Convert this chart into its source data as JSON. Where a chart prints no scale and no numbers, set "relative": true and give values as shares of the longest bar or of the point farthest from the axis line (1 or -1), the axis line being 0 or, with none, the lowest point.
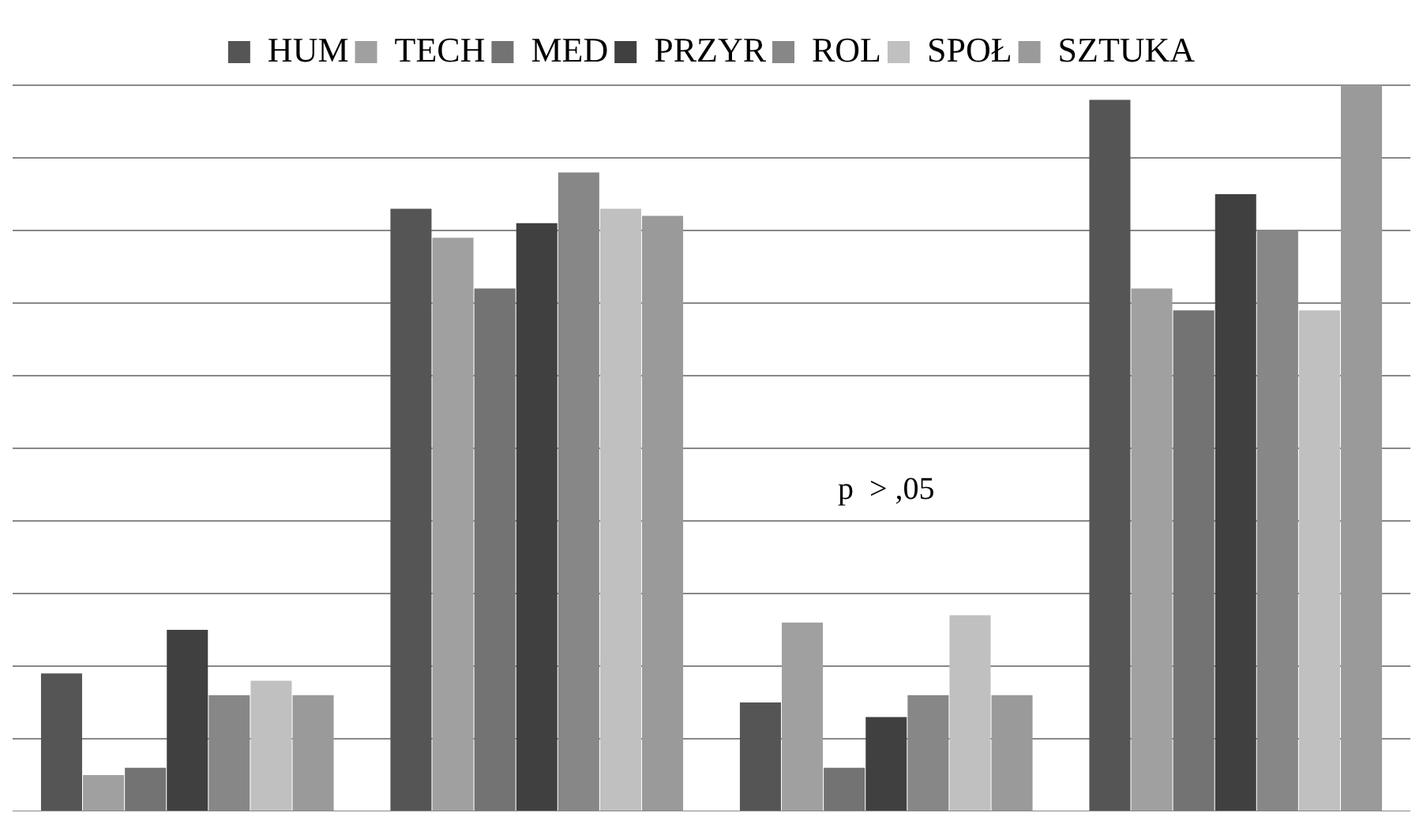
{
  "chart_data": {
    "type": "bar",
    "relative": true,
    "categories": [
      null,
      null,
      null,
      null
    ],
    "grid": "y",
    "legend": "top",
    "annotations": [
      "p  > ,05"
    ],
    "series": [
      {
        "name": "HUM",
        "color": "#555555",
        "values": [
          0.19,
          0.83,
          0.15,
          0.98
        ]
      },
      {
        "name": "TECH",
        "color": "#a0a0a0",
        "values": [
          0.05,
          0.79,
          0.26,
          0.72
        ]
      },
      {
        "name": "MED",
        "color": "#737373",
        "values": [
          0.06,
          0.72,
          0.06,
          0.69
        ]
      },
      {
        "name": "PRZYR",
        "color": "#404040",
        "values": [
          0.25,
          0.81,
          0.13,
          0.85
        ]
      },
      {
        "name": "ROL",
        "color": "#878787",
        "values": [
          0.16,
          0.88,
          0.16,
          0.8
        ]
      },
      {
        "name": "SPOŁ",
        "color": "#c0c0c0",
        "values": [
          0.18,
          0.83,
          0.27,
          0.69
        ]
      },
      {
        "name": "SZTUKA",
        "color": "#9a9a9a",
        "values": [
          0.16,
          0.82,
          0.16,
          1.0
        ]
      }
    ]
  }
}
